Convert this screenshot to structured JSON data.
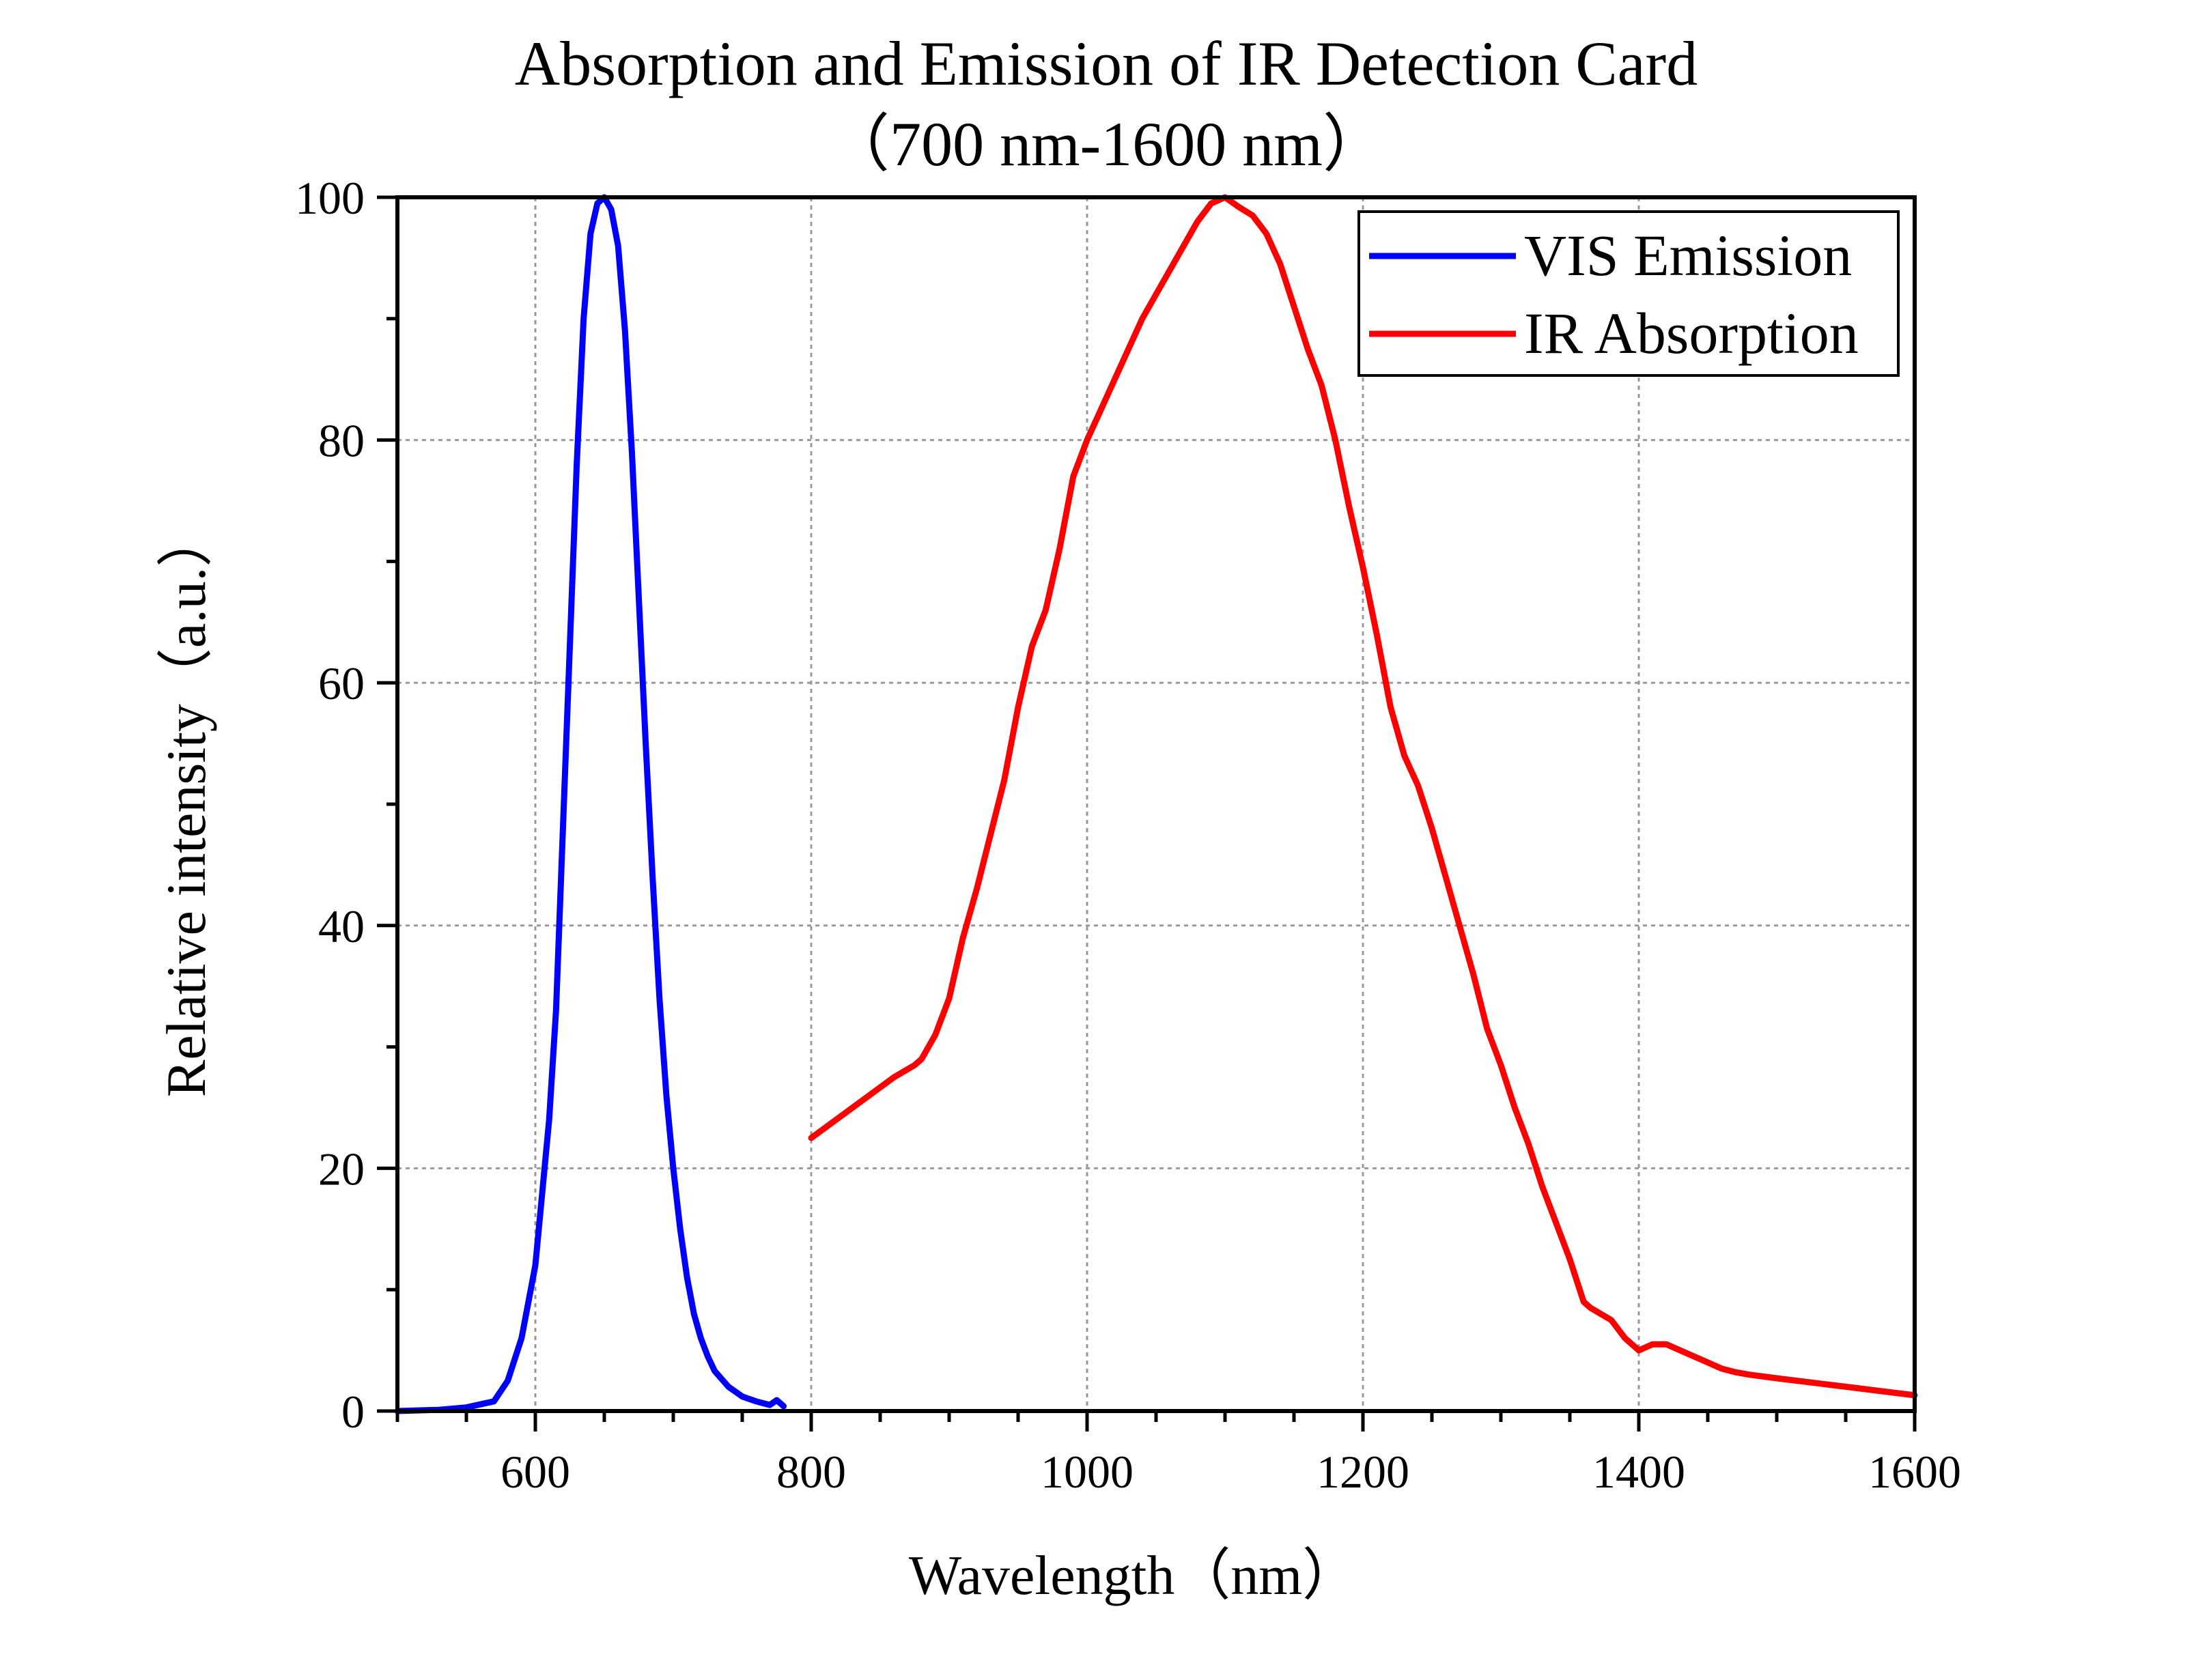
{
  "chart_data": {
    "type": "line",
    "title": "Absorption and Emission of IR Detection Card",
    "subtitle": "（700 nm-1600 nm）",
    "xlabel": "Wavelength（nm）",
    "ylabel": "Relative intensity（a.u.）",
    "xlim": [
      500,
      1600
    ],
    "ylim": [
      0,
      100
    ],
    "xticks": [
      600,
      800,
      1000,
      1200,
      1400,
      1600
    ],
    "xtick_labels": [
      "600",
      "800",
      "1000",
      "1200",
      "1400",
      "1600"
    ],
    "yticks": [
      0,
      20,
      40,
      60,
      80,
      100
    ],
    "ytick_labels": [
      "0",
      "20",
      "40",
      "60",
      "80",
      "100"
    ],
    "grid": true,
    "legend_position": "top-right",
    "series": [
      {
        "name": "VIS Emission",
        "color": "#0000ff",
        "x": [
          500,
          530,
          550,
          570,
          580,
          590,
          600,
          610,
          615,
          620,
          625,
          630,
          635,
          640,
          645,
          650,
          655,
          660,
          665,
          670,
          675,
          680,
          685,
          690,
          695,
          700,
          705,
          710,
          715,
          720,
          725,
          730,
          740,
          750,
          760,
          770,
          775,
          780
        ],
        "y": [
          0,
          0.1,
          0.3,
          0.8,
          2.5,
          6,
          12,
          24,
          33,
          48,
          63,
          78,
          90,
          97,
          99.5,
          100,
          99,
          96,
          89,
          79,
          67,
          55,
          44,
          34,
          26,
          20,
          15,
          11,
          8,
          6,
          4.5,
          3.3,
          2,
          1.2,
          0.8,
          0.5,
          0.9,
          0.4
        ]
      },
      {
        "name": "IR Absorption",
        "color": "#ff0000",
        "x": [
          800,
          830,
          860,
          875,
          880,
          890,
          900,
          910,
          920,
          930,
          940,
          950,
          960,
          970,
          980,
          990,
          1000,
          1010,
          1020,
          1030,
          1040,
          1050,
          1060,
          1070,
          1080,
          1090,
          1100,
          1110,
          1120,
          1130,
          1140,
          1150,
          1160,
          1170,
          1180,
          1190,
          1200,
          1210,
          1220,
          1230,
          1240,
          1250,
          1260,
          1270,
          1280,
          1290,
          1300,
          1310,
          1320,
          1330,
          1340,
          1350,
          1360,
          1365,
          1380,
          1390,
          1400,
          1410,
          1420,
          1430,
          1440,
          1450,
          1460,
          1470,
          1480,
          1500,
          1550,
          1600
        ],
        "y": [
          22.5,
          25,
          27.5,
          28.5,
          29,
          31,
          34,
          39,
          43,
          47.5,
          52,
          58,
          63,
          66,
          71,
          77,
          80,
          82.5,
          85,
          87.5,
          90,
          92,
          94,
          96,
          98,
          99.5,
          100,
          99.2,
          98.5,
          97,
          94.5,
          91,
          87.5,
          84.5,
          80,
          74.5,
          69.5,
          64,
          58,
          54,
          51.5,
          48,
          44,
          40,
          36,
          31.5,
          28.5,
          25,
          22,
          18.5,
          15.5,
          12.5,
          9,
          8.5,
          7.5,
          6,
          5,
          5.5,
          5.5,
          5,
          4.5,
          4,
          3.5,
          3.2,
          3,
          2.7,
          2,
          1.3
        ]
      }
    ]
  }
}
